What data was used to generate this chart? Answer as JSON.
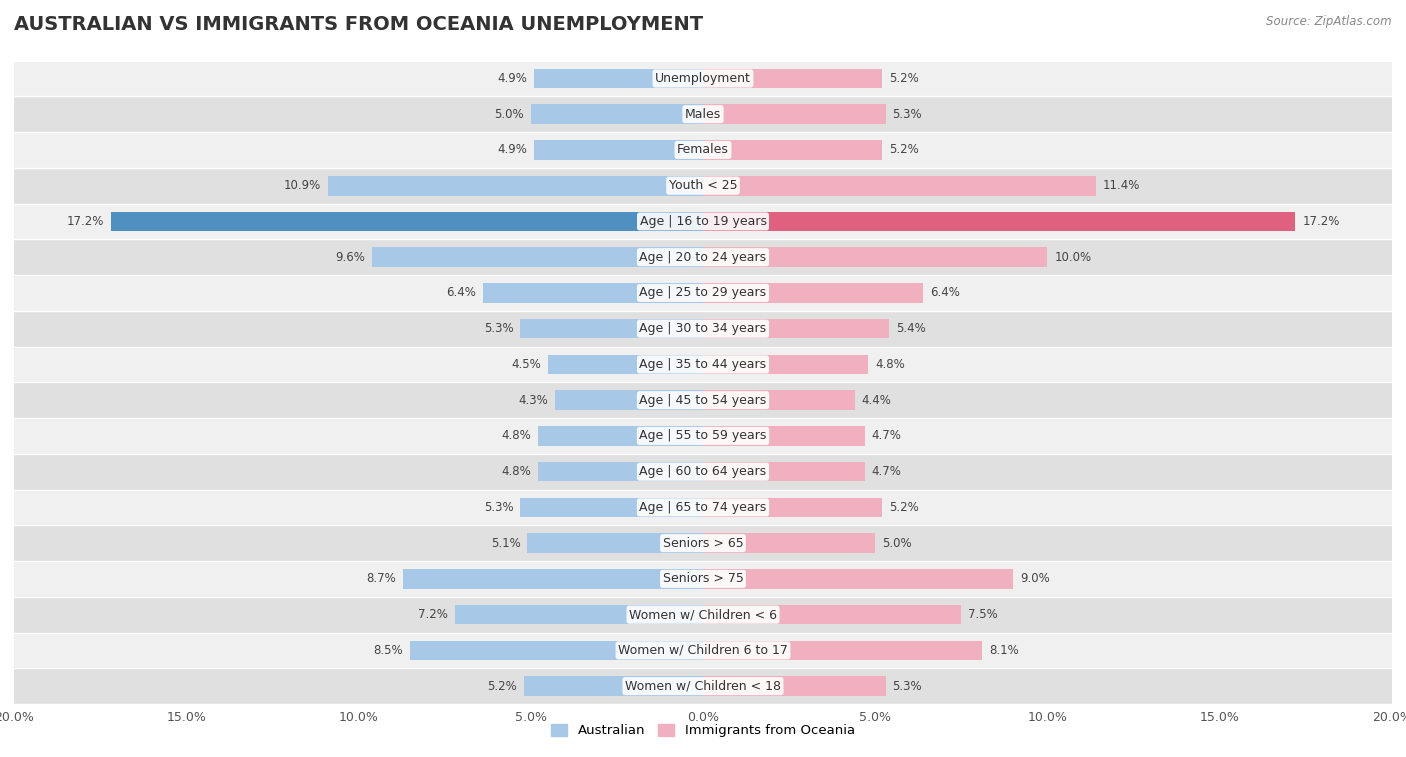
{
  "title": "AUSTRALIAN VS IMMIGRANTS FROM OCEANIA UNEMPLOYMENT",
  "source": "Source: ZipAtlas.com",
  "categories": [
    "Unemployment",
    "Males",
    "Females",
    "Youth < 25",
    "Age | 16 to 19 years",
    "Age | 20 to 24 years",
    "Age | 25 to 29 years",
    "Age | 30 to 34 years",
    "Age | 35 to 44 years",
    "Age | 45 to 54 years",
    "Age | 55 to 59 years",
    "Age | 60 to 64 years",
    "Age | 65 to 74 years",
    "Seniors > 65",
    "Seniors > 75",
    "Women w/ Children < 6",
    "Women w/ Children 6 to 17",
    "Women w/ Children < 18"
  ],
  "australian": [
    4.9,
    5.0,
    4.9,
    10.9,
    17.2,
    9.6,
    6.4,
    5.3,
    4.5,
    4.3,
    4.8,
    4.8,
    5.3,
    5.1,
    8.7,
    7.2,
    8.5,
    5.2
  ],
  "immigrants": [
    5.2,
    5.3,
    5.2,
    11.4,
    17.2,
    10.0,
    6.4,
    5.4,
    4.8,
    4.4,
    4.7,
    4.7,
    5.2,
    5.0,
    9.0,
    7.5,
    8.1,
    5.3
  ],
  "australian_color": "#a8c8e8",
  "immigrants_color": "#f0b0c0",
  "highlight_australian_color": "#5090c0",
  "highlight_immigrants_color": "#e06080",
  "row_bg_odd": "#f0f0f0",
  "row_bg_even": "#e0e0e0",
  "max_value": 20.0,
  "bar_height": 0.55,
  "fig_bg": "#ffffff",
  "title_fontsize": 14,
  "label_fontsize": 9,
  "tick_fontsize": 9,
  "value_fontsize": 8.5
}
